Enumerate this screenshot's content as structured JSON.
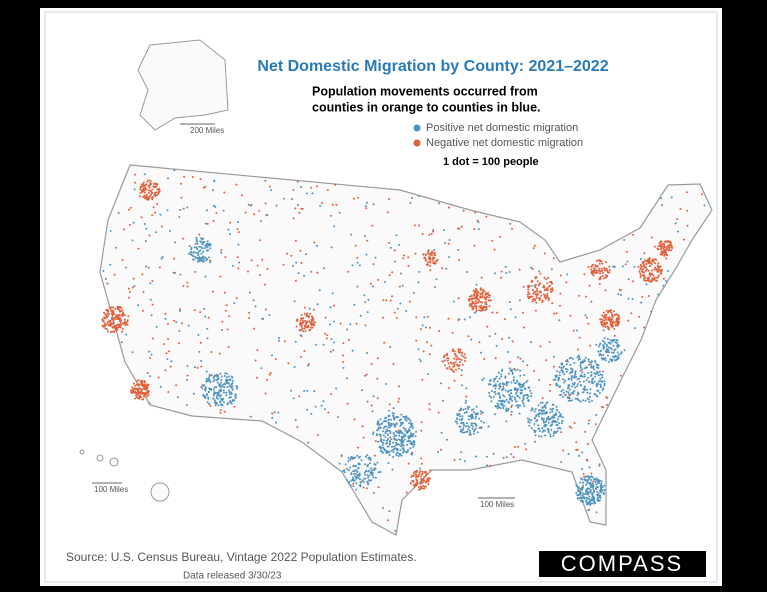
{
  "title": "Net Domestic Migration by County: 2021–2022",
  "subtitle": [
    "Population movements occurred from",
    "counties in orange to counties in blue."
  ],
  "legend": [
    {
      "label": "Positive net domestic migration",
      "color": "#4d93bf"
    },
    {
      "label": "Negative net domestic migration",
      "color": "#e0603a"
    }
  ],
  "dot_key": "1 dot = 100 people",
  "scale_labels": {
    "alaska": "200 Miles",
    "hawaii": "100 Miles",
    "mainland": "100 Miles"
  },
  "source": "Source: U.S. Census Bureau, Vintage 2022 Population Estimates.",
  "release_note": "Data released 3/30/23",
  "logo": "COMPASS"
}
